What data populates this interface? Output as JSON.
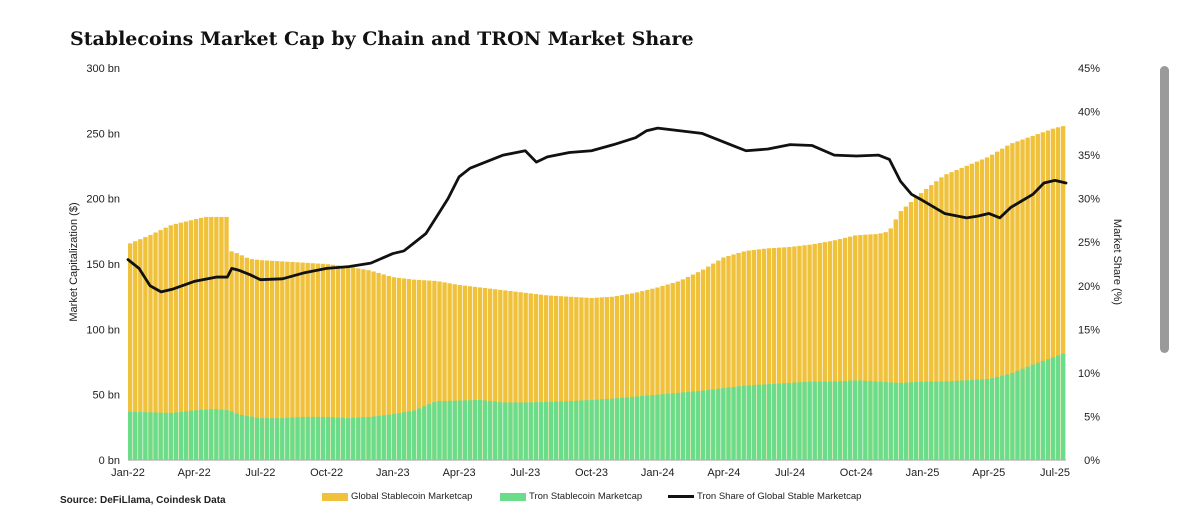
{
  "chart_data": {
    "type": "bar+line",
    "title": "Stablecoins Market Cap by Chain and TRON Market Share",
    "source": "Source: DeFiLlama, Coindesk Data",
    "ylabel_left": "Market Capitalization ($)",
    "ylabel_right": "Market Share (%)",
    "y_left_ticks": [
      "0 bn",
      "50 bn",
      "100 bn",
      "150 bn",
      "200 bn",
      "250 bn",
      "300 bn"
    ],
    "y_left_range": [
      0,
      300
    ],
    "y_right_ticks": [
      "0%",
      "5%",
      "10%",
      "15%",
      "20%",
      "25%",
      "30%",
      "35%",
      "40%",
      "45%"
    ],
    "y_right_range": [
      0,
      45
    ],
    "x_ticks": [
      "Jan-22",
      "Apr-22",
      "Jul-22",
      "Oct-22",
      "Jan-23",
      "Apr-23",
      "Jul-23",
      "Oct-23",
      "Jan-24",
      "Apr-24",
      "Jul-24",
      "Oct-24",
      "Jan-25",
      "Apr-25",
      "Jul-25"
    ],
    "x_range_months": [
      0,
      42.5
    ],
    "series": [
      {
        "name": "Global Stablecoin Marketcap",
        "kind": "bar",
        "color": "#F0C23B",
        "points": [
          [
            0,
            165
          ],
          [
            1,
            172
          ],
          [
            2,
            180
          ],
          [
            3,
            184
          ],
          [
            3.5,
            186
          ],
          [
            4,
            186
          ],
          [
            4.6,
            186
          ],
          [
            4.65,
            160
          ],
          [
            5,
            158
          ],
          [
            5.5,
            154
          ],
          [
            6,
            153
          ],
          [
            7,
            152
          ],
          [
            8,
            151
          ],
          [
            9,
            150
          ],
          [
            10,
            148
          ],
          [
            11,
            145
          ],
          [
            12,
            140
          ],
          [
            13,
            138
          ],
          [
            14,
            137
          ],
          [
            15,
            134
          ],
          [
            16,
            132
          ],
          [
            17,
            130
          ],
          [
            18,
            128
          ],
          [
            19,
            126
          ],
          [
            20,
            125
          ],
          [
            21,
            124
          ],
          [
            22,
            125
          ],
          [
            23,
            128
          ],
          [
            24,
            132
          ],
          [
            25,
            137
          ],
          [
            26,
            145
          ],
          [
            27,
            155
          ],
          [
            28,
            160
          ],
          [
            29,
            162
          ],
          [
            30,
            163
          ],
          [
            31,
            165
          ],
          [
            32,
            168
          ],
          [
            33,
            172
          ],
          [
            34,
            173
          ],
          [
            34.5,
            175
          ],
          [
            35,
            190
          ],
          [
            36,
            205
          ],
          [
            37,
            218
          ],
          [
            38,
            225
          ],
          [
            39,
            232
          ],
          [
            40,
            242
          ],
          [
            41,
            248
          ],
          [
            42,
            254
          ],
          [
            42.5,
            256
          ]
        ]
      },
      {
        "name": "Tron Stablecoin Marketcap",
        "kind": "bar",
        "color": "#6BDD8A",
        "points": [
          [
            0,
            37
          ],
          [
            2,
            36
          ],
          [
            3,
            38
          ],
          [
            4,
            39
          ],
          [
            4.6,
            38
          ],
          [
            5,
            35
          ],
          [
            6,
            32
          ],
          [
            7,
            32
          ],
          [
            8,
            33
          ],
          [
            9,
            33
          ],
          [
            10,
            32
          ],
          [
            11,
            33
          ],
          [
            12,
            35
          ],
          [
            13,
            38
          ],
          [
            14,
            45
          ],
          [
            16,
            46
          ],
          [
            17,
            44
          ],
          [
            18,
            44
          ],
          [
            20,
            45
          ],
          [
            22,
            47
          ],
          [
            24,
            50
          ],
          [
            26,
            53
          ],
          [
            27,
            55
          ],
          [
            28,
            57
          ],
          [
            29,
            58
          ],
          [
            30,
            59
          ],
          [
            31,
            60
          ],
          [
            32,
            60
          ],
          [
            33,
            61
          ],
          [
            34,
            60
          ],
          [
            35,
            59
          ],
          [
            36,
            60
          ],
          [
            37,
            60
          ],
          [
            38,
            61
          ],
          [
            39,
            62
          ],
          [
            40,
            66
          ],
          [
            41,
            73
          ],
          [
            42,
            79
          ],
          [
            42.5,
            82
          ]
        ]
      },
      {
        "name": "Tron Share of Global Stable Marketcap",
        "kind": "line",
        "color": "#111111",
        "points": [
          [
            0,
            23
          ],
          [
            0.5,
            22
          ],
          [
            1,
            20
          ],
          [
            1.5,
            19.3
          ],
          [
            2,
            19.6
          ],
          [
            3,
            20.5
          ],
          [
            4,
            21
          ],
          [
            4.5,
            21
          ],
          [
            4.7,
            22
          ],
          [
            5,
            21.8
          ],
          [
            5.5,
            21.3
          ],
          [
            6,
            20.7
          ],
          [
            7,
            20.8
          ],
          [
            8,
            21.5
          ],
          [
            9,
            22
          ],
          [
            10,
            22.2
          ],
          [
            11,
            22.6
          ],
          [
            12,
            23.7
          ],
          [
            12.5,
            24
          ],
          [
            13,
            25
          ],
          [
            13.5,
            26
          ],
          [
            14,
            28
          ],
          [
            14.5,
            30
          ],
          [
            15,
            32.5
          ],
          [
            15.5,
            33.5
          ],
          [
            16,
            34
          ],
          [
            17,
            35
          ],
          [
            18,
            35.5
          ],
          [
            18.5,
            34.2
          ],
          [
            19,
            34.8
          ],
          [
            20,
            35.3
          ],
          [
            21,
            35.5
          ],
          [
            22,
            36.2
          ],
          [
            23,
            37
          ],
          [
            23.5,
            37.8
          ],
          [
            24,
            38.1
          ],
          [
            25,
            37.8
          ],
          [
            26,
            37.5
          ],
          [
            27,
            36.5
          ],
          [
            27.5,
            36
          ],
          [
            28,
            35.5
          ],
          [
            29,
            35.7
          ],
          [
            30,
            36.2
          ],
          [
            31,
            36.1
          ],
          [
            32,
            35
          ],
          [
            33,
            34.9
          ],
          [
            34,
            35
          ],
          [
            34.5,
            34.5
          ],
          [
            35,
            32
          ],
          [
            35.5,
            30.5
          ],
          [
            36,
            29.8
          ],
          [
            37,
            28.3
          ],
          [
            38,
            27.8
          ],
          [
            38.5,
            28
          ],
          [
            39,
            28.3
          ],
          [
            39.5,
            27.8
          ],
          [
            40,
            29
          ],
          [
            41,
            30.5
          ],
          [
            41.5,
            31.8
          ],
          [
            42,
            32.1
          ],
          [
            42.5,
            31.8
          ]
        ]
      }
    ]
  }
}
